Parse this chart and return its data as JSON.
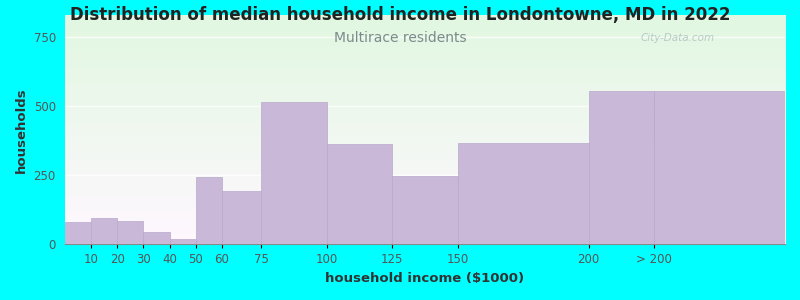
{
  "title": "Distribution of median household income in Londontowne, MD in 2022",
  "subtitle": "Multirace residents",
  "xlabel": "household income ($1000)",
  "ylabel": "households",
  "background_color": "#00FFFF",
  "bar_color": "#C9B8D8",
  "bar_edge_color": "#B8A8CC",
  "subtitle_color": "#7B8B8B",
  "watermark": "City-Data.com",
  "left_edges": [
    0,
    10,
    20,
    30,
    40,
    50,
    60,
    75,
    100,
    125,
    150,
    200,
    225
  ],
  "right_edges": [
    10,
    20,
    30,
    40,
    50,
    60,
    75,
    100,
    125,
    150,
    200,
    225,
    275
  ],
  "values": [
    80,
    95,
    85,
    45,
    20,
    245,
    195,
    515,
    365,
    248,
    368,
    555,
    555
  ],
  "tick_positions": [
    10,
    20,
    30,
    40,
    50,
    60,
    75,
    100,
    125,
    150,
    200,
    225
  ],
  "tick_labels": [
    "10",
    "20",
    "30",
    "40",
    "50",
    "60",
    "75",
    "100",
    "125",
    "150",
    "200",
    "> 200"
  ],
  "ylim": [
    0,
    830
  ],
  "xlim": [
    0,
    275
  ],
  "yticks": [
    0,
    250,
    500,
    750
  ],
  "title_fontsize": 12,
  "subtitle_fontsize": 10,
  "axis_label_fontsize": 9.5,
  "tick_fontsize": 8.5
}
